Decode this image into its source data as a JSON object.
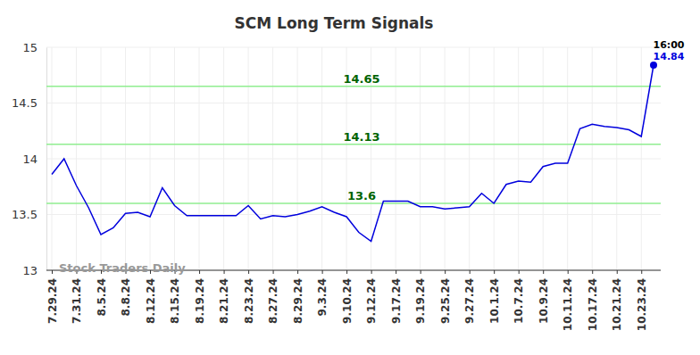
{
  "chart_data": {
    "type": "line",
    "title": "SCM Long Term Signals",
    "categories": [
      "7.29.24",
      null,
      "7.31.24",
      null,
      "8.5.24",
      null,
      "8.8.24",
      null,
      "8.12.24",
      null,
      "8.15.24",
      null,
      "8.19.24",
      null,
      "8.21.24",
      null,
      "8.23.24",
      null,
      "8.27.24",
      null,
      "8.29.24",
      null,
      "9.3.24",
      null,
      "9.10.24",
      null,
      "9.12.24",
      null,
      "9.17.24",
      null,
      "9.19.24",
      null,
      "9.25.24",
      null,
      "9.27.24",
      null,
      "10.1.24",
      null,
      "10.7.24",
      null,
      "10.9.24",
      null,
      "10.11.24",
      null,
      "10.17.24",
      null,
      "10.21.24",
      null,
      "10.23.24",
      null
    ],
    "values": [
      13.86,
      14.0,
      13.76,
      13.56,
      13.32,
      13.38,
      13.51,
      13.52,
      13.48,
      13.74,
      13.58,
      13.49,
      13.49,
      13.49,
      13.49,
      13.49,
      13.58,
      13.46,
      13.49,
      13.48,
      13.5,
      13.53,
      13.57,
      13.52,
      13.48,
      13.34,
      13.26,
      13.62,
      13.62,
      13.62,
      13.57,
      13.57,
      13.55,
      13.56,
      13.57,
      13.69,
      13.6,
      13.77,
      13.8,
      13.79,
      13.93,
      13.96,
      13.96,
      14.27,
      14.31,
      14.29,
      14.28,
      14.26,
      14.2,
      14.84
    ],
    "color": "#0000dd",
    "ylim": [
      13,
      15
    ],
    "yticks": [
      13,
      13.5,
      14,
      14.5,
      15
    ],
    "grid": true,
    "signal_levels": [
      14.65,
      14.13,
      13.6
    ],
    "last_time": "16:00",
    "watermark": "Stock Traders Daily"
  }
}
